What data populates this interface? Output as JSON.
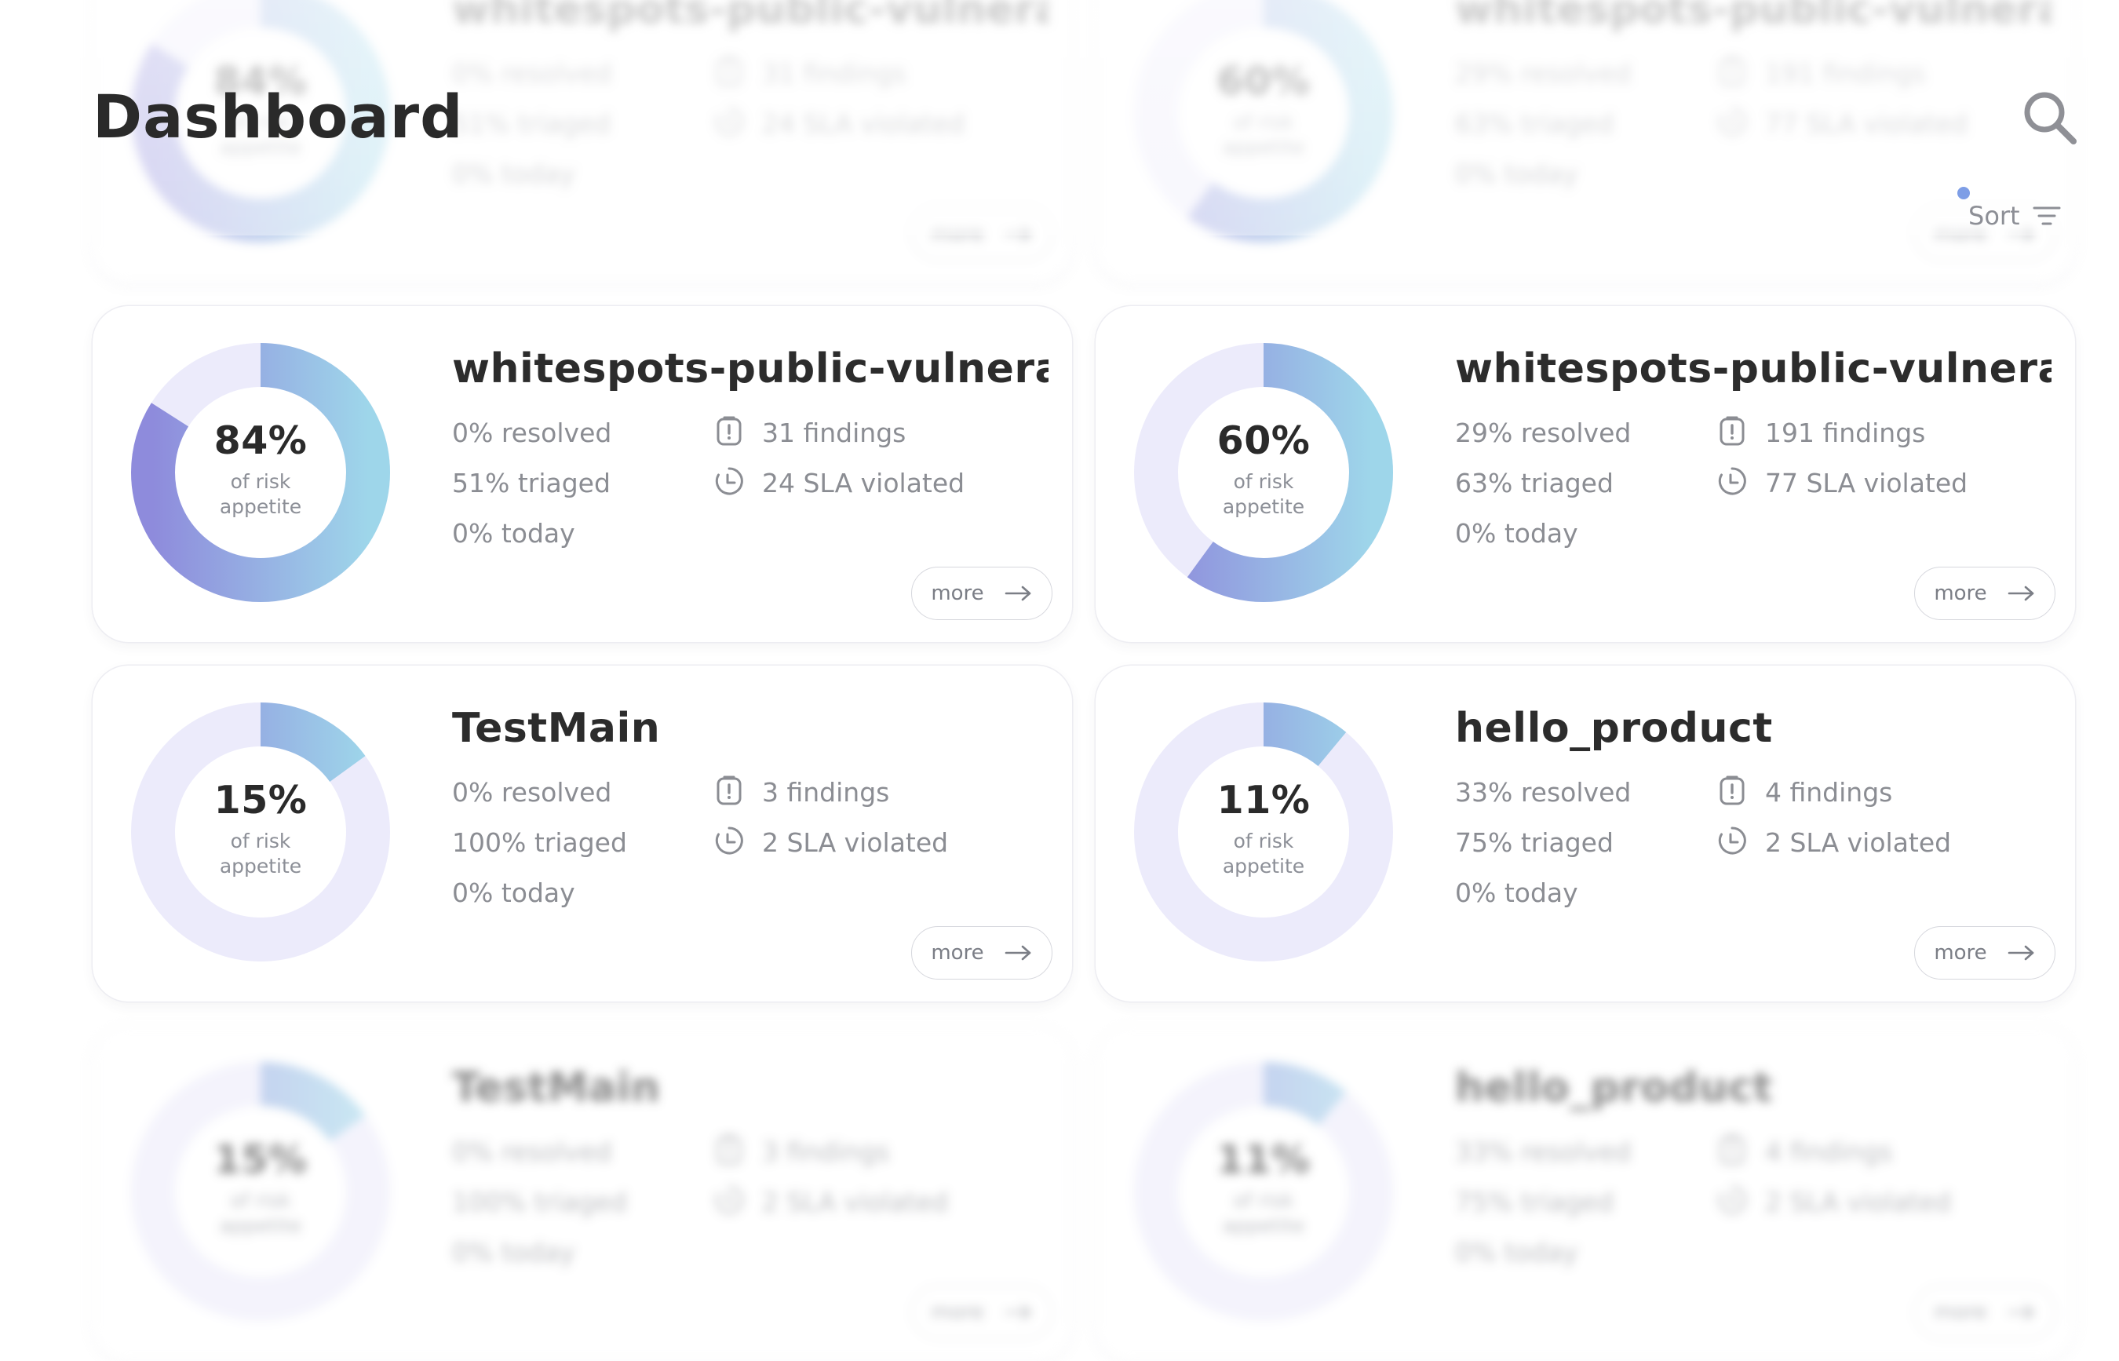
{
  "header": {
    "title": "Dashboard",
    "sort_label": "Sort"
  },
  "colors": {
    "ring_track": "#ecebfb",
    "ring_start": "#8e8bdc",
    "ring_end": "#9ed6ea",
    "text_muted": "#8b8d93",
    "sort_dot": "#7e9ee6"
  },
  "cards": [
    {
      "title": "whitespots-public-vulnerab...",
      "percent": 84,
      "percent_label": "84%",
      "donut_sub": "of risk appetite",
      "resolved": "0% resolved",
      "triaged": "51% triaged",
      "today": "0% today",
      "findings": "31 findings",
      "sla": "24 SLA violated",
      "more_label": "more"
    },
    {
      "title": "whitespots-public-vulnerab...",
      "percent": 60,
      "percent_label": "60%",
      "donut_sub": "of risk appetite",
      "resolved": "29% resolved",
      "triaged": "63% triaged",
      "today": "0% today",
      "findings": "191 findings",
      "sla": "77 SLA violated",
      "more_label": "more"
    },
    {
      "title": "TestMain",
      "percent": 15,
      "percent_label": "15%",
      "donut_sub": "of risk appetite",
      "resolved": "0% resolved",
      "triaged": "100% triaged",
      "today": "0% today",
      "findings": "3 findings",
      "sla": "2 SLA violated",
      "more_label": "more"
    },
    {
      "title": "hello_product",
      "percent": 11,
      "percent_label": "11%",
      "donut_sub": "of risk appetite",
      "resolved": "33% resolved",
      "triaged": "75% triaged",
      "today": "0% today",
      "findings": "4 findings",
      "sla": "2 SLA violated",
      "more_label": "more"
    }
  ]
}
